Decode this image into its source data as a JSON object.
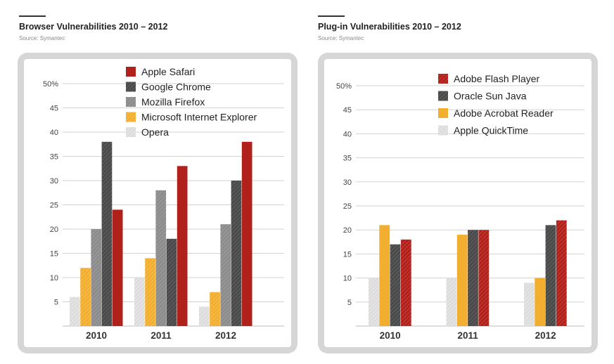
{
  "charts": [
    {
      "title": "Browser Vulnerabilities 2010 – 2012",
      "source": "Source: Symantec"
    },
    {
      "title": "Plug-in Vulnerabilities 2010 – 2012",
      "source": "Source: Symantec"
    }
  ],
  "colors": {
    "red": "#b1211b",
    "dark": "#4a4a4a",
    "grey": "#8c8c8c",
    "orange": "#f2ae2e",
    "light": "#dcdcdc"
  },
  "chart_data": [
    {
      "type": "bar",
      "title": "Browser Vulnerabilities 2010 – 2012",
      "categories": [
        "2010",
        "2011",
        "2012"
      ],
      "ylim": [
        0,
        50
      ],
      "yticks": [
        "5",
        "10",
        "15",
        "20",
        "25",
        "30",
        "35",
        "40",
        "45",
        "50%"
      ],
      "grid": true,
      "legend_position": "top",
      "series": [
        {
          "name": "Opera",
          "values": [
            6,
            10,
            4
          ],
          "color": "#dcdcdc",
          "pattern": "hatch-light"
        },
        {
          "name": "Microsoft Internet Explorer",
          "values": [
            12,
            14,
            7
          ],
          "color": "#f2ae2e",
          "pattern": "hatch-orange"
        },
        {
          "name": "Mozilla Firefox",
          "values": [
            20,
            28,
            21
          ],
          "color": "#8c8c8c",
          "pattern": "hatch-grey"
        },
        {
          "name": "Google Chrome",
          "values": [
            38,
            18,
            30
          ],
          "color": "#4a4a4a",
          "pattern": "hatch-dark"
        },
        {
          "name": "Apple Safari",
          "values": [
            24,
            33,
            38
          ],
          "color": "#b1211b",
          "pattern": "solid-red"
        }
      ],
      "legend_order": [
        "Apple Safari",
        "Google Chrome",
        "Mozilla Firefox",
        "Microsoft Internet Explorer",
        "Opera"
      ]
    },
    {
      "type": "bar",
      "title": "Plug-in Vulnerabilities 2010 – 2012",
      "categories": [
        "2010",
        "2011",
        "2012"
      ],
      "ylim": [
        0,
        50
      ],
      "yticks": [
        "5",
        "10",
        "15",
        "20",
        "25",
        "30",
        "35",
        "40",
        "45",
        "50%"
      ],
      "grid": true,
      "legend_position": "top",
      "series": [
        {
          "name": "Apple QuickTime",
          "values": [
            10,
            10,
            9
          ],
          "color": "#dcdcdc",
          "pattern": "hatch-light"
        },
        {
          "name": "Adobe Acrobat Reader",
          "values": [
            21,
            19,
            10
          ],
          "color": "#f2ae2e",
          "pattern": "solid-orange"
        },
        {
          "name": "Oracle Sun Java",
          "values": [
            17,
            20,
            21
          ],
          "color": "#4a4a4a",
          "pattern": "hatch-dark"
        },
        {
          "name": "Adobe Flash Player",
          "values": [
            18,
            20,
            22
          ],
          "color": "#b1211b",
          "pattern": "hatch-red"
        }
      ],
      "legend_order": [
        "Adobe Flash Player",
        "Oracle Sun Java",
        "Adobe Acrobat Reader",
        "Apple QuickTime"
      ]
    }
  ]
}
